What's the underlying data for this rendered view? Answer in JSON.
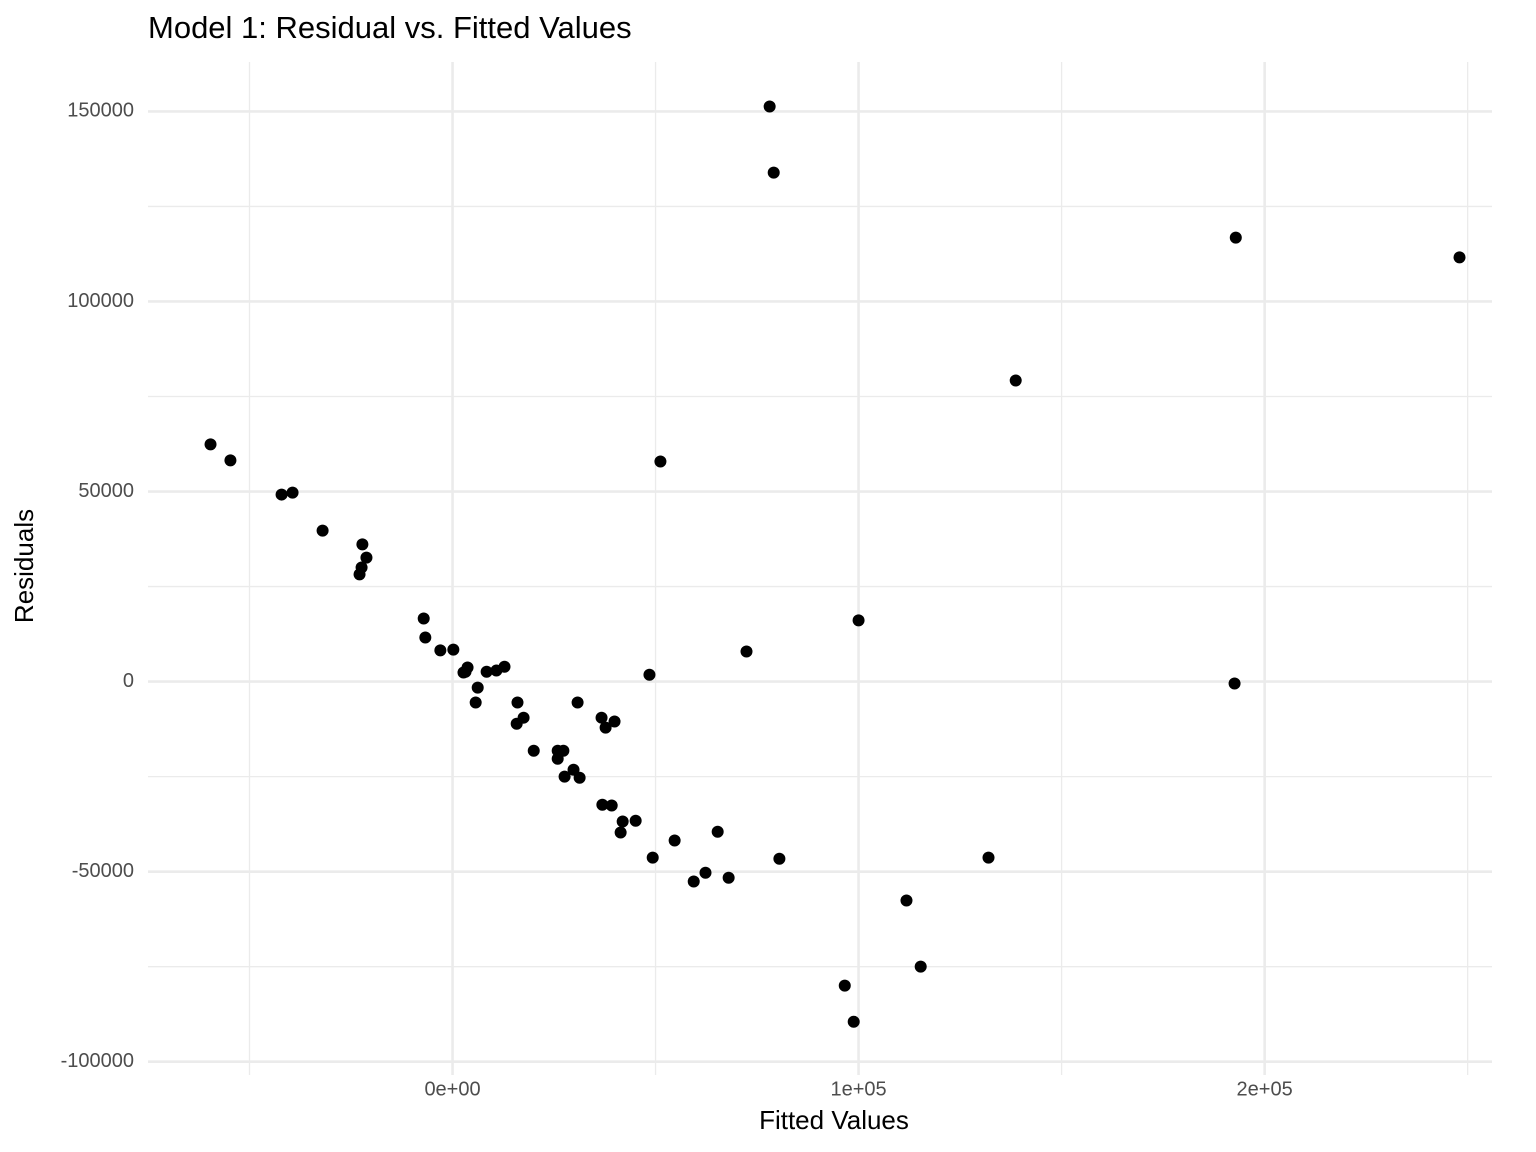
{
  "chart_data": {
    "type": "scatter",
    "title": "Model 1: Residual vs. Fitted Values",
    "x_label": "Fitted Values",
    "y_label": "Residuals",
    "color": "#000000",
    "grid": true,
    "xlim": [
      -75000,
      256000
    ],
    "ylim": [
      -103500,
      163000
    ],
    "xticks": [
      {
        "value": 0,
        "label": "0e+00"
      },
      {
        "value": 100000,
        "label": "1e+05"
      },
      {
        "value": 200000,
        "label": "2e+05"
      }
    ],
    "xminorticks": [
      -50000,
      50000,
      150000,
      250000
    ],
    "yticks": [
      -100000,
      -50000,
      0,
      50000,
      100000,
      150000
    ],
    "yminorticks": [
      -75000,
      -25000,
      25000,
      75000,
      125000
    ],
    "x": [
      -59600,
      -54700,
      -42100,
      -39400,
      -32000,
      -22200,
      -21200,
      -22400,
      -22900,
      -7100,
      -6700,
      -3000,
      200,
      2700,
      3700,
      3200,
      6200,
      5700,
      8400,
      10800,
      12800,
      16000,
      15800,
      17500,
      20000,
      25900,
      27300,
      25900,
      27600,
      29800,
      31300,
      30800,
      36700,
      37700,
      39900,
      36900,
      39200,
      41900,
      41400,
      45100,
      48500,
      49300,
      51200,
      54700,
      59400,
      62300,
      65300,
      68000,
      72400,
      78100,
      79100,
      80500,
      96600,
      98800,
      100000,
      111800,
      115300,
      132000,
      138700,
      192600,
      192900,
      248000
    ],
    "values": [
      62400,
      58200,
      49200,
      49700,
      39700,
      36100,
      32600,
      30000,
      28200,
      16600,
      11600,
      8200,
      8400,
      2400,
      3700,
      2600,
      -1600,
      -5500,
      2600,
      2900,
      3900,
      -5500,
      -11100,
      -9500,
      -18200,
      -18200,
      -18200,
      -20300,
      -25000,
      -23200,
      -25300,
      -5500,
      -9500,
      -12100,
      -10500,
      -32400,
      -32600,
      -36800,
      -39700,
      -36600,
      1800,
      -46300,
      57900,
      -41800,
      -52600,
      -50300,
      -39500,
      -51600,
      7900,
      151300,
      133900,
      -46600,
      -80000,
      -89500,
      16100,
      -57600,
      -75000,
      -46300,
      79200,
      -500,
      116800,
      111600
    ]
  }
}
